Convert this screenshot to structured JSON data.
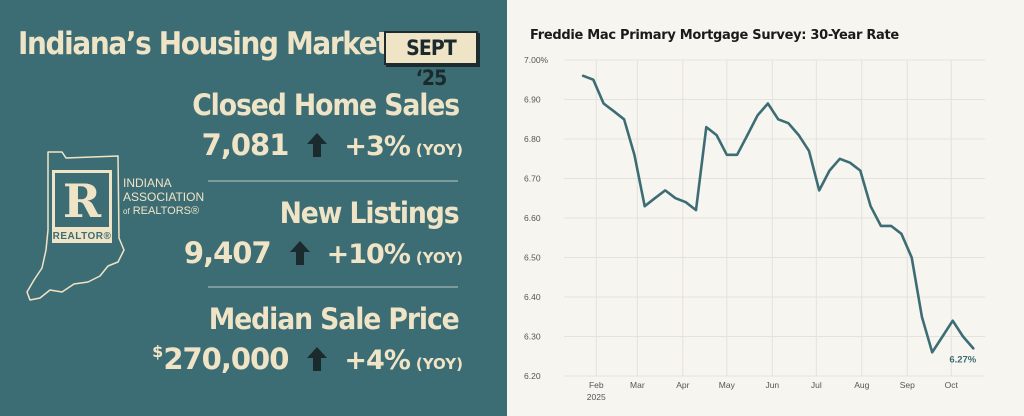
{
  "infographic": {
    "title": "Indiana’s Housing Market",
    "month_badge": "SEPT ‘25",
    "metrics": [
      {
        "label": "Closed Home Sales",
        "value": "7,081",
        "change": "+3%",
        "period": "(YOY)"
      },
      {
        "label": "New Listings",
        "value": "9,407",
        "change": "+10%",
        "period": "(YOY)"
      },
      {
        "label": "Median Sale Price",
        "currency": "$",
        "value": "270,000",
        "change": "+4%",
        "period": "(YOY)"
      }
    ],
    "logo": {
      "letter": "R",
      "mark_text": "REALTOR",
      "registered": "®",
      "org_line1": "INDIANA",
      "org_line2": "ASSOCIATION",
      "org_line3_prefix": "of",
      "org_line3": "REALTORS",
      "org_line3_suffix": "®"
    },
    "colors": {
      "panel": "#3d6d74",
      "text": "#f0e4c7",
      "arrow": "#1b2a2c"
    },
    "icons": {
      "increase": "up-arrow-icon",
      "state": "indiana-outline-icon"
    }
  },
  "chart_data": {
    "type": "line",
    "title": "Freddie Mac Primary Mortgage Survey: 30-Year Rate",
    "xlabel": "",
    "ylabel": "",
    "ylim": [
      6.2,
      7.0
    ],
    "yticks": [
      "7.00%",
      "6.90",
      "6.80",
      "6.70",
      "6.60",
      "6.50",
      "6.40",
      "6.30",
      "6.20"
    ],
    "ytick_values": [
      7.0,
      6.9,
      6.8,
      6.7,
      6.6,
      6.5,
      6.4,
      6.3,
      6.2
    ],
    "xticks": [
      {
        "label": "Feb",
        "sub": "2025",
        "date": "2025-02-01"
      },
      {
        "label": "Mar",
        "sub": "",
        "date": "2025-03-01"
      },
      {
        "label": "Apr",
        "sub": "",
        "date": "2025-04-01"
      },
      {
        "label": "May",
        "sub": "",
        "date": "2025-05-01"
      },
      {
        "label": "Jun",
        "sub": "",
        "date": "2025-06-01"
      },
      {
        "label": "Jul",
        "sub": "",
        "date": "2025-07-01"
      },
      {
        "label": "Aug",
        "sub": "",
        "date": "2025-08-01"
      },
      {
        "label": "Sep",
        "sub": "",
        "date": "2025-09-01"
      },
      {
        "label": "Oct",
        "sub": "",
        "date": "2025-10-01"
      }
    ],
    "grid": true,
    "series": [
      {
        "color": "#3d6d74",
        "points": [
          {
            "date": "2025-01-23",
            "value": 6.96
          },
          {
            "date": "2025-01-30",
            "value": 6.95
          },
          {
            "date": "2025-02-06",
            "value": 6.89
          },
          {
            "date": "2025-02-13",
            "value": 6.87
          },
          {
            "date": "2025-02-20",
            "value": 6.85
          },
          {
            "date": "2025-02-27",
            "value": 6.76
          },
          {
            "date": "2025-03-06",
            "value": 6.63
          },
          {
            "date": "2025-03-13",
            "value": 6.65
          },
          {
            "date": "2025-03-20",
            "value": 6.67
          },
          {
            "date": "2025-03-27",
            "value": 6.65
          },
          {
            "date": "2025-04-03",
            "value": 6.64
          },
          {
            "date": "2025-04-10",
            "value": 6.62
          },
          {
            "date": "2025-04-17",
            "value": 6.83
          },
          {
            "date": "2025-04-24",
            "value": 6.81
          },
          {
            "date": "2025-05-01",
            "value": 6.76
          },
          {
            "date": "2025-05-08",
            "value": 6.76
          },
          {
            "date": "2025-05-15",
            "value": 6.81
          },
          {
            "date": "2025-05-22",
            "value": 6.86
          },
          {
            "date": "2025-05-29",
            "value": 6.89
          },
          {
            "date": "2025-06-05",
            "value": 6.85
          },
          {
            "date": "2025-06-12",
            "value": 6.84
          },
          {
            "date": "2025-06-19",
            "value": 6.81
          },
          {
            "date": "2025-06-26",
            "value": 6.77
          },
          {
            "date": "2025-07-03",
            "value": 6.67
          },
          {
            "date": "2025-07-10",
            "value": 6.72
          },
          {
            "date": "2025-07-17",
            "value": 6.75
          },
          {
            "date": "2025-07-24",
            "value": 6.74
          },
          {
            "date": "2025-07-31",
            "value": 6.72
          },
          {
            "date": "2025-08-07",
            "value": 6.63
          },
          {
            "date": "2025-08-14",
            "value": 6.58
          },
          {
            "date": "2025-08-21",
            "value": 6.58
          },
          {
            "date": "2025-08-28",
            "value": 6.56
          },
          {
            "date": "2025-09-04",
            "value": 6.5
          },
          {
            "date": "2025-09-11",
            "value": 6.35
          },
          {
            "date": "2025-09-18",
            "value": 6.26
          },
          {
            "date": "2025-09-25",
            "value": 6.3
          },
          {
            "date": "2025-10-02",
            "value": 6.34
          },
          {
            "date": "2025-10-09",
            "value": 6.3
          },
          {
            "date": "2025-10-16",
            "value": 6.27
          }
        ]
      }
    ],
    "end_label": "6.27%"
  }
}
